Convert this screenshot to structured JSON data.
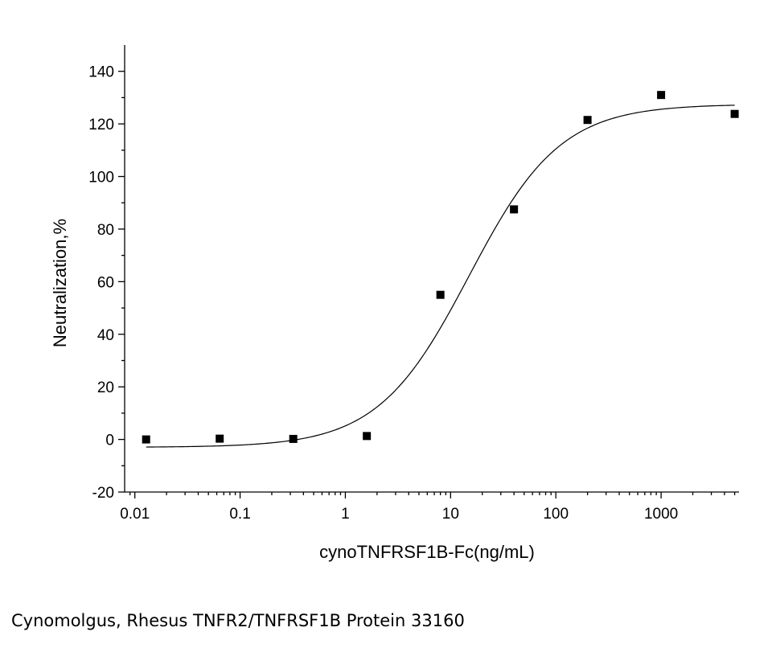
{
  "chart_data": {
    "type": "scatter",
    "title": "",
    "xlabel": "cynoTNFRSF1B-Fc(ng/mL)",
    "ylabel": "Neutralization,%",
    "x_scale": "log",
    "xlim": [
      0.008,
      5500
    ],
    "ylim": [
      -20,
      150
    ],
    "x_ticks": [
      0.01,
      0.1,
      1,
      10,
      100,
      1000
    ],
    "x_tick_labels": [
      "0.01",
      "0.1",
      "1",
      "10",
      "100",
      "1000"
    ],
    "y_ticks": [
      -20,
      0,
      20,
      40,
      60,
      80,
      100,
      120,
      140
    ],
    "y_tick_labels": [
      "-20",
      "0",
      "20",
      "40",
      "60",
      "80",
      "100",
      "120",
      "140"
    ],
    "grid": false,
    "legend": "none",
    "points": {
      "x": [
        0.0128,
        0.064,
        0.32,
        1.6,
        8,
        40,
        200,
        1000,
        5000
      ],
      "y": [
        0,
        0.3,
        0.2,
        1.3,
        55,
        87.5,
        121.5,
        131,
        123.8
      ]
    },
    "fit": {
      "type": "four-parameter logistic",
      "bottom": -3,
      "top": 127.5,
      "ec50": 15,
      "hill": 1.0
    },
    "marker_color": "#000000",
    "line_color": "#000000"
  },
  "caption": "Cynomolgus, Rhesus TNFR2/TNFRSF1B Protein 33160"
}
